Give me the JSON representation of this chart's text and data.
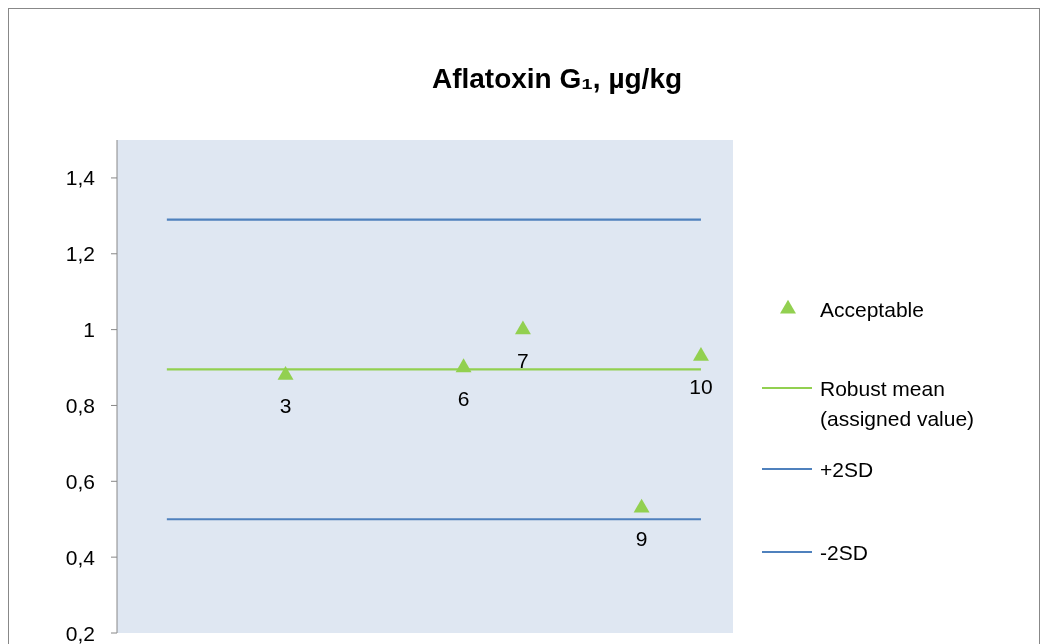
{
  "chart_data": {
    "type": "scatter",
    "title": "Aflatoxin G₁, µg/kg",
    "categories": [
      null,
      null,
      null,
      null,
      null,
      null,
      null,
      null,
      null,
      null
    ],
    "ylim": [
      0.2,
      1.5
    ],
    "tick_labels": "y",
    "grid": false,
    "legend": "right",
    "yticks": [
      {
        "value": 0.2,
        "label": "0,2"
      },
      {
        "value": 0.4,
        "label": "0,4"
      },
      {
        "value": 0.6,
        "label": "0,6"
      },
      {
        "value": 0.8,
        "label": "0,8"
      },
      {
        "value": 1,
        "label": "1"
      },
      {
        "value": 1.2,
        "label": "1,2"
      },
      {
        "value": 1.4,
        "label": "1,4"
      }
    ],
    "series": [
      {
        "name": "Acceptable",
        "marker": "triangle",
        "color": "#92d050",
        "values": [
          null,
          null,
          0.88,
          null,
          null,
          0.9,
          1.0,
          null,
          0.53,
          0.93
        ]
      },
      {
        "name": "Robust mean (assigned value)",
        "type": "line",
        "marker": "none",
        "color": "#92d050",
        "values": [
          0.895,
          0.895,
          0.895,
          0.895,
          0.895,
          0.895,
          0.895,
          0.895,
          0.895,
          0.895
        ]
      },
      {
        "name": "+2SD",
        "type": "line",
        "marker": "none",
        "color": "#4f81bd",
        "values": [
          1.29,
          1.29,
          1.29,
          1.29,
          1.29,
          1.29,
          1.29,
          1.29,
          1.29,
          1.29
        ]
      },
      {
        "name": "-2SD",
        "type": "line",
        "marker": "none",
        "color": "#4f81bd",
        "values": [
          0.5,
          0.5,
          0.5,
          0.5,
          0.5,
          0.5,
          0.5,
          0.5,
          0.5,
          0.5
        ]
      }
    ],
    "annotations": [
      {
        "text": "3",
        "y": 0.88
      },
      {
        "text": "6",
        "y": 0.9
      },
      {
        "text": "7",
        "y": 1.0
      },
      {
        "text": "9",
        "y": 0.53
      },
      {
        "text": "10",
        "y": 0.93
      }
    ]
  }
}
